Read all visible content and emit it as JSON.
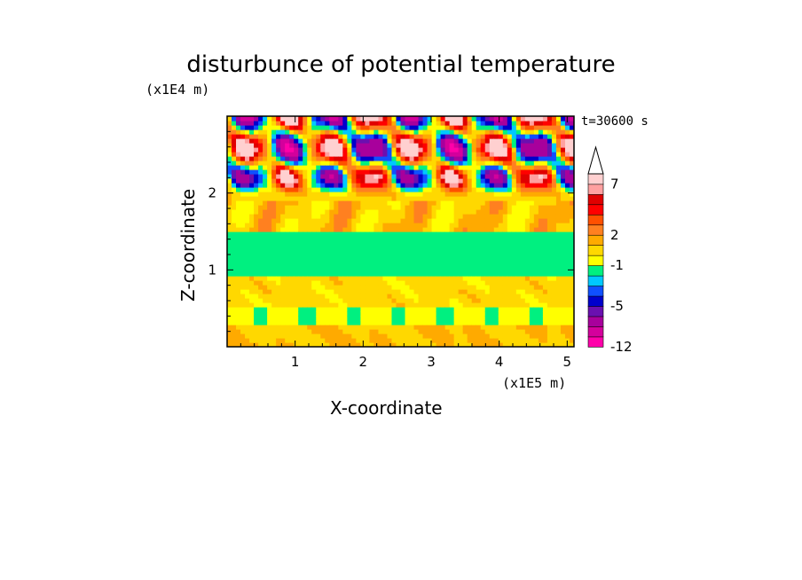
{
  "chart_data": {
    "type": "heatmap",
    "title": "disturbunce of potential temperature",
    "xlabel": "X-coordinate",
    "ylabel": "Z-coordinate",
    "x_unit": "(x1E5 m)",
    "y_unit": "(x1E4 m)",
    "annotation": "t=30600 s",
    "xlim": [
      0,
      5.1
    ],
    "ylim": [
      0,
      3.0
    ],
    "x_ticks": [
      "1",
      "2",
      "3",
      "4",
      "5"
    ],
    "x_tick_values": [
      1,
      2,
      3,
      4,
      5
    ],
    "y_ticks": [
      "1",
      "2"
    ],
    "y_tick_values": [
      1,
      2
    ],
    "colorbar": {
      "levels": [
        -12,
        -10,
        -8,
        -6,
        -5,
        -4,
        -3,
        -2,
        -1,
        0,
        1,
        2,
        3,
        4,
        5,
        6,
        7,
        8,
        9
      ],
      "labels": [
        "-12",
        "-5",
        "-1",
        "2",
        "7"
      ],
      "label_values": [
        -12,
        -5,
        -1,
        2,
        7
      ],
      "colors": [
        "#ff00aa",
        "#d4009c",
        "#a8009c",
        "#6a10b0",
        "#0000cc",
        "#1050ff",
        "#00c8ff",
        "#00f080",
        "#ffff00",
        "#ffd800",
        "#ffaa00",
        "#ff8020",
        "#ff5000",
        "#ff0000",
        "#e00000",
        "#ffa0a0",
        "#ffd0d0"
      ],
      "extend": "max"
    },
    "bands": [
      {
        "zmin": 0.0,
        "zmax": 0.3,
        "dominant_value": 1
      },
      {
        "zmin": 0.3,
        "zmax": 0.5,
        "dominant_value": -1
      },
      {
        "zmin": 0.5,
        "zmax": 0.9,
        "dominant_value": 0.5
      },
      {
        "zmin": 0.9,
        "zmax": 1.5,
        "dominant_value": -1.5
      },
      {
        "zmin": 1.5,
        "zmax": 1.9,
        "dominant_value": 1
      },
      {
        "zmin": 1.9,
        "zmax": 3.0,
        "dominant_value": "wave pattern, -12 to 9"
      }
    ]
  }
}
